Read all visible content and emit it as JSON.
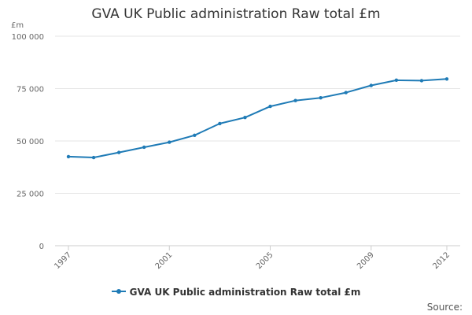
{
  "chart_data": {
    "type": "line",
    "title": "GVA UK Public administration Raw total £m",
    "ylabel": "£m",
    "xlabel": "",
    "x": [
      1997,
      1998,
      1999,
      2000,
      2001,
      2002,
      2003,
      2004,
      2005,
      2006,
      2007,
      2008,
      2009,
      2010,
      2011,
      2012
    ],
    "series": [
      {
        "name": "GVA UK Public administration Raw total £m",
        "values": [
          42500,
          42100,
          44500,
          47000,
          49400,
          52700,
          58300,
          61200,
          66500,
          69300,
          70600,
          73100,
          76500,
          79000,
          78800,
          79600
        ],
        "color": "#1f7bb6"
      }
    ],
    "xticks": [
      "1997",
      "2001",
      "2005",
      "2009",
      "2012"
    ],
    "yticks": [
      "0",
      "25 000",
      "50 000",
      "75 000",
      "100 000"
    ],
    "ytick_values": [
      0,
      25000,
      50000,
      75000,
      100000
    ],
    "xlim": [
      1997,
      2012
    ],
    "ylim": [
      0,
      100000
    ],
    "grid": true,
    "legend": "bottom-center",
    "source_label": "Source:"
  }
}
